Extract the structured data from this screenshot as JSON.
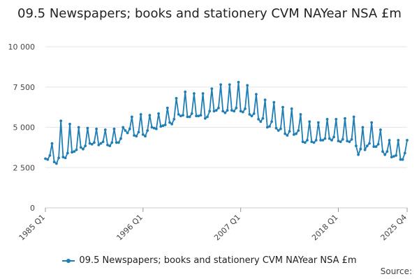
{
  "chart_data": {
    "type": "line",
    "title": "09.5 Newspapers; books and stationery CVM NAYear NSA £m",
    "xlabel": "",
    "ylabel": "",
    "ylim": [
      0,
      10000
    ],
    "yticks": [
      0,
      2500,
      5000,
      7500,
      10000
    ],
    "ytick_labels": [
      "0",
      "2 500",
      "5 000",
      "7 500",
      "10 000"
    ],
    "xtick_labels": [
      "1985 Q1",
      "1996 Q1",
      "2007 Q1",
      "2018 Q1",
      "2025 Q4"
    ],
    "xtick_positions": [
      0,
      44,
      88,
      132,
      163
    ],
    "legend": "09.5 Newspapers; books and stationery CVM NAYear NSA £m",
    "color": "#1f7fb5",
    "series": [
      {
        "name": "09.5 Newspapers; books and stationery CVM NAYear NSA £m",
        "first_period": "1985 Q1",
        "values": [
          3050,
          3000,
          3250,
          4000,
          2850,
          2750,
          3100,
          5400,
          3150,
          3100,
          3400,
          5200,
          3450,
          3500,
          3600,
          5000,
          3750,
          3650,
          3850,
          4950,
          4000,
          3950,
          4050,
          4900,
          3900,
          4000,
          4100,
          4850,
          3900,
          3850,
          4050,
          4900,
          4050,
          4050,
          4300,
          5000,
          4800,
          4650,
          4900,
          5650,
          4500,
          4450,
          4700,
          5800,
          4550,
          4450,
          4800,
          5750,
          5000,
          4950,
          4900,
          5850,
          5050,
          5100,
          5150,
          6200,
          5300,
          5200,
          5500,
          6800,
          5800,
          5700,
          5750,
          7200,
          5650,
          5650,
          5850,
          7100,
          5700,
          5700,
          5750,
          7100,
          5550,
          5650,
          6000,
          7400,
          6000,
          6050,
          6200,
          7650,
          6000,
          5900,
          6050,
          7650,
          6050,
          6000,
          6200,
          7800,
          6000,
          5950,
          6150,
          7600,
          5800,
          5700,
          5850,
          7050,
          5500,
          5350,
          5550,
          6700,
          5000,
          5050,
          5350,
          6550,
          4950,
          4800,
          4900,
          6250,
          4600,
          4500,
          4750,
          6150,
          4550,
          4600,
          4800,
          5800,
          4100,
          4050,
          4200,
          5350,
          4100,
          4050,
          4200,
          5300,
          4200,
          4200,
          4300,
          5500,
          4300,
          4200,
          4400,
          5500,
          4150,
          4100,
          4250,
          5550,
          4150,
          4100,
          4250,
          5650,
          3850,
          3300,
          3650,
          5000,
          3600,
          3850,
          4000,
          5300,
          3800,
          3800,
          3950,
          4850,
          3500,
          3300,
          3500,
          4200,
          3150,
          3200,
          3250,
          4200,
          3000,
          3000,
          3400,
          4200
        ]
      }
    ]
  },
  "footer": {
    "source_label": "Source:"
  }
}
